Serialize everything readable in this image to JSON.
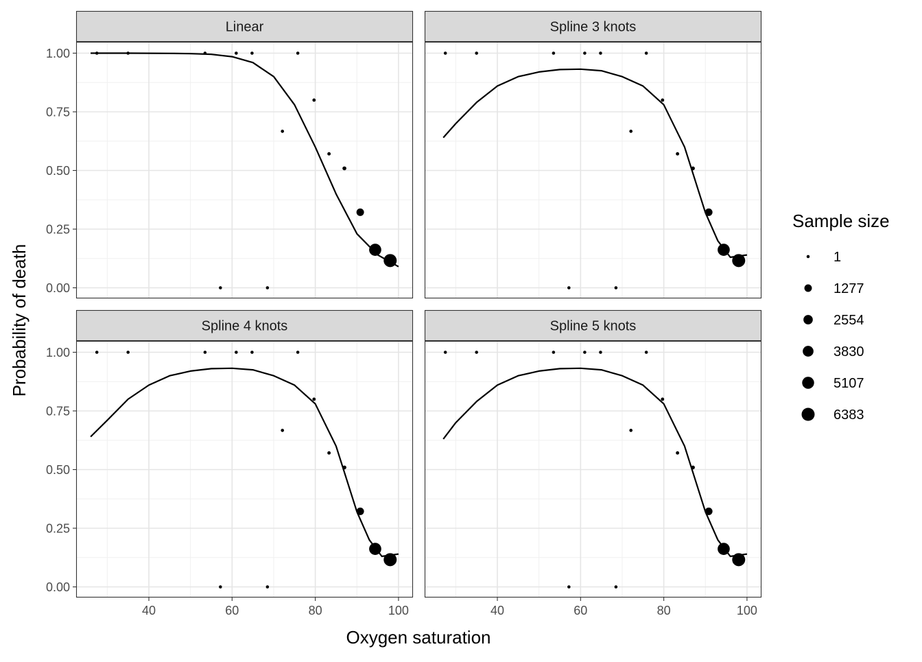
{
  "chart_data": {
    "type": "scatter",
    "layout": "facet-grid-2x2",
    "x_axis_label": "Oxygen saturation",
    "y_axis_label": "Probability of death",
    "x_ticks": [
      40,
      60,
      80,
      100
    ],
    "x_range": [
      24.5,
      103
    ],
    "y_ticks": [
      "0.00",
      "0.25",
      "0.50",
      "0.75",
      "1.00"
    ],
    "y_range": [
      -0.05,
      1.1
    ],
    "grid": true,
    "legend_position": "right",
    "legend": {
      "title": "Sample size",
      "entries": [
        {
          "label": "1",
          "value": 1
        },
        {
          "label": "1277",
          "value": 1277
        },
        {
          "label": "2554",
          "value": 2554
        },
        {
          "label": "3830",
          "value": 3830
        },
        {
          "label": "5107",
          "value": 5107
        },
        {
          "label": "6383",
          "value": 6383
        }
      ]
    },
    "observed_points": [
      {
        "x": 27.5,
        "y": 1.0,
        "n": 1
      },
      {
        "x": 35.0,
        "y": 1.0,
        "n": 1
      },
      {
        "x": 53.5,
        "y": 1.0,
        "n": 1
      },
      {
        "x": 61.0,
        "y": 1.0,
        "n": 1
      },
      {
        "x": 64.8,
        "y": 1.0,
        "n": 1
      },
      {
        "x": 75.8,
        "y": 1.0,
        "n": 1
      },
      {
        "x": 79.7,
        "y": 0.8,
        "n": 5
      },
      {
        "x": 72.1,
        "y": 0.667,
        "n": 3
      },
      {
        "x": 83.3,
        "y": 0.571,
        "n": 7
      },
      {
        "x": 87.0,
        "y": 0.509,
        "n": 50
      },
      {
        "x": 90.8,
        "y": 0.322,
        "n": 1300
      },
      {
        "x": 94.4,
        "y": 0.162,
        "n": 5300
      },
      {
        "x": 98.0,
        "y": 0.116,
        "n": 6383
      },
      {
        "x": 57.2,
        "y": 0.0,
        "n": 1
      },
      {
        "x": 68.5,
        "y": 0.0,
        "n": 1
      }
    ],
    "panels": [
      {
        "title": "Linear",
        "fitted_curve": [
          [
            26,
            1.0
          ],
          [
            35,
            1.0
          ],
          [
            45,
            0.999
          ],
          [
            50,
            0.998
          ],
          [
            55,
            0.995
          ],
          [
            60,
            0.985
          ],
          [
            65,
            0.96
          ],
          [
            70,
            0.9
          ],
          [
            75,
            0.78
          ],
          [
            80,
            0.6
          ],
          [
            85,
            0.4
          ],
          [
            90,
            0.23
          ],
          [
            95,
            0.14
          ],
          [
            100,
            0.09
          ]
        ]
      },
      {
        "title": "Spline 3 knots",
        "fitted_curve": [
          [
            27,
            0.64
          ],
          [
            30,
            0.7
          ],
          [
            35,
            0.79
          ],
          [
            40,
            0.86
          ],
          [
            45,
            0.9
          ],
          [
            50,
            0.92
          ],
          [
            55,
            0.93
          ],
          [
            60,
            0.932
          ],
          [
            65,
            0.925
          ],
          [
            70,
            0.9
          ],
          [
            75,
            0.86
          ],
          [
            80,
            0.78
          ],
          [
            85,
            0.6
          ],
          [
            90,
            0.32
          ],
          [
            93,
            0.2
          ],
          [
            96,
            0.13
          ],
          [
            100,
            0.14
          ]
        ]
      },
      {
        "title": "Spline 4 knots",
        "fitted_curve": [
          [
            26,
            0.64
          ],
          [
            30,
            0.71
          ],
          [
            35,
            0.8
          ],
          [
            40,
            0.86
          ],
          [
            45,
            0.9
          ],
          [
            50,
            0.92
          ],
          [
            55,
            0.93
          ],
          [
            60,
            0.932
          ],
          [
            65,
            0.925
          ],
          [
            70,
            0.9
          ],
          [
            75,
            0.86
          ],
          [
            80,
            0.78
          ],
          [
            85,
            0.6
          ],
          [
            90,
            0.32
          ],
          [
            93,
            0.2
          ],
          [
            96,
            0.13
          ],
          [
            100,
            0.14
          ]
        ]
      },
      {
        "title": "Spline 5 knots",
        "fitted_curve": [
          [
            27,
            0.63
          ],
          [
            30,
            0.7
          ],
          [
            35,
            0.79
          ],
          [
            40,
            0.86
          ],
          [
            45,
            0.9
          ],
          [
            50,
            0.92
          ],
          [
            55,
            0.93
          ],
          [
            60,
            0.932
          ],
          [
            65,
            0.925
          ],
          [
            70,
            0.9
          ],
          [
            75,
            0.86
          ],
          [
            80,
            0.78
          ],
          [
            85,
            0.6
          ],
          [
            90,
            0.32
          ],
          [
            93,
            0.2
          ],
          [
            96,
            0.13
          ],
          [
            100,
            0.14
          ]
        ]
      }
    ]
  }
}
